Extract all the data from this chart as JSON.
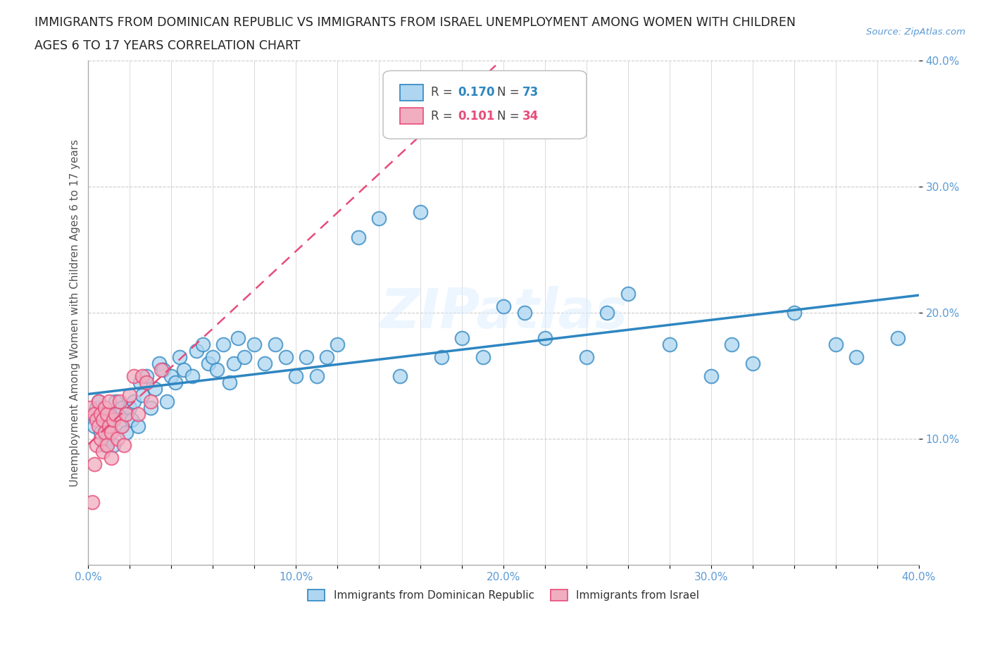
{
  "title_line1": "IMMIGRANTS FROM DOMINICAN REPUBLIC VS IMMIGRANTS FROM ISRAEL UNEMPLOYMENT AMONG WOMEN WITH CHILDREN",
  "title_line2": "AGES 6 TO 17 YEARS CORRELATION CHART",
  "source": "Source: ZipAtlas.com",
  "ylabel": "Unemployment Among Women with Children Ages 6 to 17 years",
  "xlim": [
    0.0,
    0.4
  ],
  "ylim": [
    0.0,
    0.4
  ],
  "xtick_labels": [
    "0.0%",
    "",
    "",
    "",
    "",
    "10.0%",
    "",
    "",
    "",
    "",
    "20.0%",
    "",
    "",
    "",
    "",
    "30.0%",
    "",
    "",
    "",
    "",
    "40.0%"
  ],
  "xtick_vals": [
    0.0,
    0.02,
    0.04,
    0.06,
    0.08,
    0.1,
    0.12,
    0.14,
    0.16,
    0.18,
    0.2,
    0.22,
    0.24,
    0.26,
    0.28,
    0.3,
    0.32,
    0.34,
    0.36,
    0.38,
    0.4
  ],
  "ytick_labels": [
    "10.0%",
    "20.0%",
    "30.0%",
    "40.0%"
  ],
  "ytick_vals": [
    0.1,
    0.2,
    0.3,
    0.4
  ],
  "legend1_R": "0.170",
  "legend1_N": "73",
  "legend2_R": "0.101",
  "legend2_N": "34",
  "color_blue": "#aed6f1",
  "color_pink": "#f1aec0",
  "color_blue_line": "#2e86c1",
  "color_pink_line": "#e74c7a",
  "trendline_blue_color": "#2e86c1",
  "trendline_pink_color": "#e74c7a",
  "watermark": "ZIPatlas",
  "blue_scatter_x": [
    0.002,
    0.003,
    0.004,
    0.005,
    0.006,
    0.007,
    0.008,
    0.009,
    0.01,
    0.01,
    0.012,
    0.013,
    0.015,
    0.016,
    0.018,
    0.018,
    0.02,
    0.021,
    0.022,
    0.024,
    0.025,
    0.026,
    0.028,
    0.03,
    0.032,
    0.034,
    0.036,
    0.038,
    0.04,
    0.042,
    0.044,
    0.046,
    0.05,
    0.052,
    0.055,
    0.058,
    0.06,
    0.062,
    0.065,
    0.068,
    0.07,
    0.072,
    0.075,
    0.08,
    0.085,
    0.09,
    0.095,
    0.1,
    0.105,
    0.11,
    0.115,
    0.12,
    0.13,
    0.14,
    0.15,
    0.16,
    0.17,
    0.18,
    0.19,
    0.2,
    0.21,
    0.22,
    0.24,
    0.25,
    0.26,
    0.28,
    0.3,
    0.31,
    0.32,
    0.34,
    0.36,
    0.37,
    0.39
  ],
  "blue_scatter_y": [
    0.12,
    0.11,
    0.125,
    0.13,
    0.105,
    0.115,
    0.095,
    0.1,
    0.115,
    0.12,
    0.095,
    0.13,
    0.11,
    0.125,
    0.105,
    0.12,
    0.125,
    0.115,
    0.13,
    0.11,
    0.145,
    0.135,
    0.15,
    0.125,
    0.14,
    0.16,
    0.155,
    0.13,
    0.15,
    0.145,
    0.165,
    0.155,
    0.15,
    0.17,
    0.175,
    0.16,
    0.165,
    0.155,
    0.175,
    0.145,
    0.16,
    0.18,
    0.165,
    0.175,
    0.16,
    0.175,
    0.165,
    0.15,
    0.165,
    0.15,
    0.165,
    0.175,
    0.26,
    0.275,
    0.15,
    0.28,
    0.165,
    0.18,
    0.165,
    0.205,
    0.2,
    0.18,
    0.165,
    0.2,
    0.215,
    0.175,
    0.15,
    0.175,
    0.16,
    0.2,
    0.175,
    0.165,
    0.18
  ],
  "pink_scatter_x": [
    0.001,
    0.002,
    0.003,
    0.003,
    0.004,
    0.004,
    0.005,
    0.005,
    0.006,
    0.006,
    0.007,
    0.007,
    0.008,
    0.008,
    0.009,
    0.009,
    0.01,
    0.01,
    0.011,
    0.011,
    0.012,
    0.013,
    0.014,
    0.015,
    0.016,
    0.017,
    0.018,
    0.02,
    0.022,
    0.024,
    0.026,
    0.028,
    0.03,
    0.035
  ],
  "pink_scatter_y": [
    0.125,
    0.05,
    0.12,
    0.08,
    0.115,
    0.095,
    0.11,
    0.13,
    0.1,
    0.12,
    0.115,
    0.09,
    0.105,
    0.125,
    0.095,
    0.12,
    0.11,
    0.13,
    0.085,
    0.105,
    0.115,
    0.12,
    0.1,
    0.13,
    0.11,
    0.095,
    0.12,
    0.135,
    0.15,
    0.12,
    0.15,
    0.145,
    0.13,
    0.155
  ]
}
